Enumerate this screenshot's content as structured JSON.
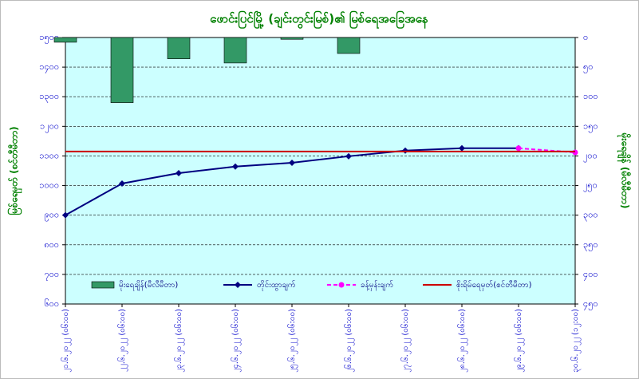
{
  "chart_data": {
    "type": "combo",
    "title": "ဖောင်းပြင်မြို့ (ချင်းတွင်းမြစ်)၏ မြစ်ရေအခြေအနေ",
    "y_label": "မြစ်ရေမှတ် (စင်တီမီတာ)",
    "y2_label": "မိုးရေချိန် (မီလီမီတာ)",
    "categories": [
      "၂၁.၆.၂၀၂၂ (၀၆:၀၀)",
      "၂၂.၆.၂၀၂၂ (၀၆:၀၀)",
      "၂၃.၆.၂၀၂၂ (၀၆:၀၀)",
      "၂၄.၆.၂၀၂၂ (၀၆:၀၀)",
      "၂၅.၆.၂၀၂၂ (၀၆:၀၀)",
      "၂၆.၆.၂၀၂၂ (၀၆:၀၀)",
      "၂၇.၆.၂၀၂၂ (၀၆:၀၀)",
      "၂၈.၆.၂၀၂၂ (၀၆:၀၀)",
      "၂၉.၆.၂၀၂၂ (၀၆:၀၀)",
      "၃၀.၆.၂၀၂၂ (၁၂:၀၀)"
    ],
    "series": [
      {
        "name": "မိုးရေချိန်(မီလီမီတာ)",
        "kind": "bar",
        "axis": "y2",
        "color": "#339966",
        "values": [
          8,
          110,
          36,
          43,
          3,
          27,
          0,
          0,
          0,
          0
        ]
      },
      {
        "name": "တိုင်းထွာချက်",
        "kind": "line",
        "color": "#000080",
        "values": [
          900,
          1007,
          1042,
          1064,
          1077,
          1099,
          1118,
          1126,
          1126,
          null
        ]
      },
      {
        "name": "ခန့်မှန်းချက်",
        "kind": "dashed-line",
        "color": "#ff00ff",
        "values": [
          null,
          null,
          null,
          null,
          null,
          null,
          null,
          null,
          1126,
          1112
        ]
      },
      {
        "name": "စိုးရိမ်ရေမှတ်(စင်တီမီတာ)",
        "kind": "hline",
        "color": "#cc0000",
        "value": 1115
      }
    ],
    "ylim": [
      600,
      1500
    ],
    "yticks": [
      {
        "value": 600,
        "label": "၆၀၀"
      },
      {
        "value": 700,
        "label": "၇၀၀"
      },
      {
        "value": 800,
        "label": "၈၀၀"
      },
      {
        "value": 900,
        "label": "၉၀၀"
      },
      {
        "value": 1000,
        "label": "၁၀၀၀"
      },
      {
        "value": 1100,
        "label": "၁၁၀၀"
      },
      {
        "value": 1200,
        "label": "၁၂၀၀"
      },
      {
        "value": 1300,
        "label": "၁၃၀၀"
      },
      {
        "value": 1400,
        "label": "၁၄၀၀"
      },
      {
        "value": 1500,
        "label": "၁၅၀၀"
      }
    ],
    "y2lim": [
      450,
      0
    ],
    "y2ticks": [
      {
        "value": 0,
        "label": "၀"
      },
      {
        "value": 50,
        "label": "၅၀"
      },
      {
        "value": 100,
        "label": "၁၀၀"
      },
      {
        "value": 150,
        "label": "၁၅၀"
      },
      {
        "value": 200,
        "label": "၂၀၀"
      },
      {
        "value": 250,
        "label": "၂၅၀"
      },
      {
        "value": 300,
        "label": "၃၀၀"
      },
      {
        "value": 350,
        "label": "၃၅၀"
      },
      {
        "value": 400,
        "label": "၄၀၀"
      },
      {
        "value": 450,
        "label": "၄၅၀"
      }
    ],
    "grid": true,
    "legend": "bottom"
  }
}
